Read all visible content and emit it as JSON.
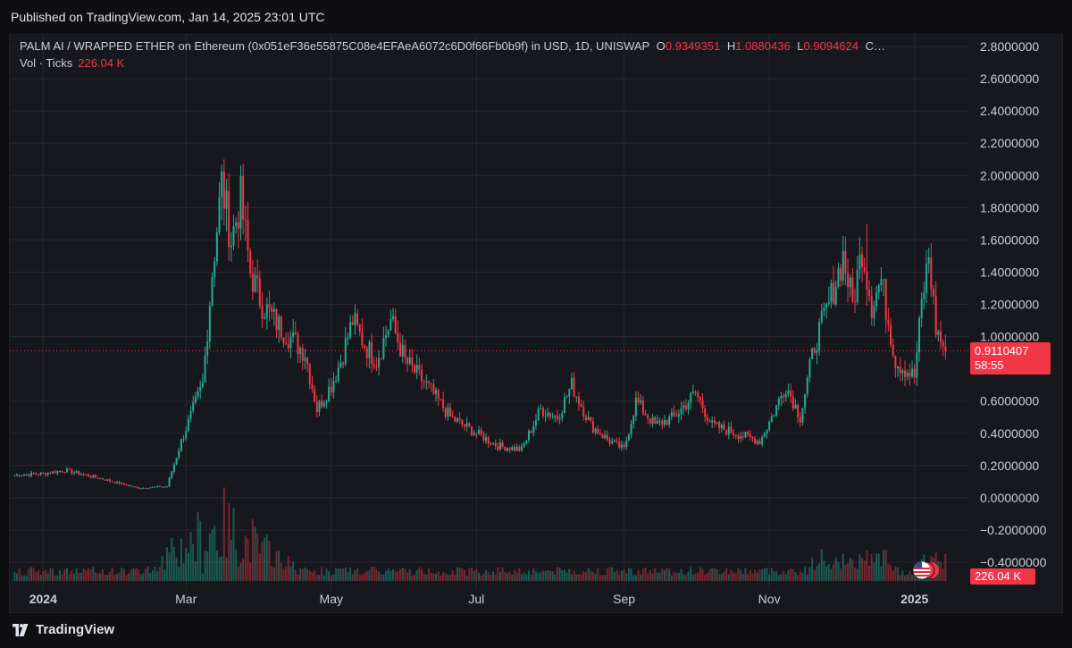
{
  "header": {
    "published": "Published on TradingView.com, Jan 14, 2025 23:01 UTC"
  },
  "legend": {
    "symbol": "PALM AI / WRAPPED ETHER on Ethereum (0x051eF36e55875C08e4EFAeA6072c6D0f66Fb0b9f) in USD, 1D, UNISWAP",
    "open_label": "O",
    "open_value": "0.9349351",
    "high_label": "H",
    "high_value": "1.0880436",
    "low_label": "L",
    "low_value": "0.9094624",
    "close_label": "C…",
    "volume_label": "Vol · Ticks",
    "volume_value": "226.04 K"
  },
  "price_tag": {
    "price": "0.9110407",
    "countdown": "58:55"
  },
  "volume_tag": "226.04 K",
  "footer": {
    "brand": "TradingView"
  },
  "colors": {
    "up": "#22ab94",
    "down": "#f23645",
    "background": "#17181d",
    "grid": "#262830",
    "axis_text": "#c9ccd4"
  },
  "chart_data": {
    "type": "candlestick",
    "title": "",
    "xlabel": "",
    "ylabel": "",
    "y_ticks": [
      "2.8000000",
      "2.6000000",
      "2.4000000",
      "2.2000000",
      "2.0000000",
      "1.8000000",
      "1.6000000",
      "1.4000000",
      "1.2000000",
      "1.0000000",
      "0.6000000",
      "0.4000000",
      "0.2000000",
      "0.0000000",
      "−0.2000000",
      "−0.4000000"
    ],
    "y_tick_values": [
      2.8,
      2.6,
      2.4,
      2.2,
      2.0,
      1.8,
      1.6,
      1.4,
      1.2,
      1.0,
      0.6,
      0.4,
      0.2,
      0.0,
      -0.2,
      -0.4
    ],
    "ylim": [
      -0.5,
      2.95
    ],
    "x_ticks": [
      "2024",
      "Mar",
      "May",
      "Jul",
      "Sep",
      "Nov",
      "2025"
    ],
    "x_tick_dates": [
      "2024-01-01",
      "2024-03-01",
      "2024-05-01",
      "2024-07-01",
      "2024-09-01",
      "2024-11-01",
      "2025-01-01"
    ],
    "x_range": [
      "2023-12-18",
      "2025-01-24"
    ],
    "last_price": 0.9110407,
    "price_path": [
      {
        "date": "2023-12-20",
        "close": 0.14
      },
      {
        "date": "2024-01-01",
        "close": 0.15
      },
      {
        "date": "2024-01-10",
        "close": 0.17
      },
      {
        "date": "2024-01-25",
        "close": 0.12
      },
      {
        "date": "2024-02-10",
        "close": 0.06
      },
      {
        "date": "2024-02-22",
        "close": 0.07
      },
      {
        "date": "2024-02-28",
        "close": 0.35
      },
      {
        "date": "2024-03-04",
        "close": 0.55
      },
      {
        "date": "2024-03-08",
        "close": 0.7
      },
      {
        "date": "2024-03-12",
        "close": 1.4
      },
      {
        "date": "2024-03-16",
        "close": 1.95
      },
      {
        "date": "2024-03-20",
        "close": 1.6
      },
      {
        "date": "2024-03-24",
        "close": 1.85
      },
      {
        "date": "2024-03-28",
        "close": 1.4
      },
      {
        "date": "2024-04-02",
        "close": 1.2
      },
      {
        "date": "2024-04-10",
        "close": 1.05
      },
      {
        "date": "2024-04-20",
        "close": 0.9
      },
      {
        "date": "2024-04-25",
        "close": 0.55
      },
      {
        "date": "2024-05-01",
        "close": 0.7
      },
      {
        "date": "2024-05-05",
        "close": 0.85
      },
      {
        "date": "2024-05-10",
        "close": 1.1
      },
      {
        "date": "2024-05-15",
        "close": 0.95
      },
      {
        "date": "2024-05-20",
        "close": 0.85
      },
      {
        "date": "2024-05-26",
        "close": 1.1
      },
      {
        "date": "2024-06-01",
        "close": 0.85
      },
      {
        "date": "2024-06-10",
        "close": 0.7
      },
      {
        "date": "2024-06-20",
        "close": 0.5
      },
      {
        "date": "2024-07-01",
        "close": 0.4
      },
      {
        "date": "2024-07-10",
        "close": 0.32
      },
      {
        "date": "2024-07-20",
        "close": 0.3
      },
      {
        "date": "2024-07-28",
        "close": 0.55
      },
      {
        "date": "2024-08-04",
        "close": 0.5
      },
      {
        "date": "2024-08-10",
        "close": 0.7
      },
      {
        "date": "2024-08-18",
        "close": 0.45
      },
      {
        "date": "2024-08-26",
        "close": 0.35
      },
      {
        "date": "2024-09-01",
        "close": 0.3
      },
      {
        "date": "2024-09-06",
        "close": 0.6
      },
      {
        "date": "2024-09-14",
        "close": 0.45
      },
      {
        "date": "2024-09-22",
        "close": 0.5
      },
      {
        "date": "2024-10-01",
        "close": 0.65
      },
      {
        "date": "2024-10-08",
        "close": 0.45
      },
      {
        "date": "2024-10-18",
        "close": 0.4
      },
      {
        "date": "2024-10-28",
        "close": 0.35
      },
      {
        "date": "2024-11-02",
        "close": 0.5
      },
      {
        "date": "2024-11-08",
        "close": 0.7
      },
      {
        "date": "2024-11-14",
        "close": 0.5
      },
      {
        "date": "2024-11-20",
        "close": 0.95
      },
      {
        "date": "2024-11-26",
        "close": 1.2
      },
      {
        "date": "2024-12-02",
        "close": 1.5
      },
      {
        "date": "2024-12-06",
        "close": 1.2
      },
      {
        "date": "2024-12-10",
        "close": 1.55
      },
      {
        "date": "2024-12-14",
        "close": 1.2
      },
      {
        "date": "2024-12-18",
        "close": 1.35
      },
      {
        "date": "2024-12-24",
        "close": 0.85
      },
      {
        "date": "2024-12-28",
        "close": 0.8
      },
      {
        "date": "2025-01-01",
        "close": 0.75
      },
      {
        "date": "2025-01-04",
        "close": 1.2
      },
      {
        "date": "2025-01-07",
        "close": 1.5
      },
      {
        "date": "2025-01-10",
        "close": 1.05
      },
      {
        "date": "2025-01-14",
        "close": 0.91
      }
    ],
    "peaks": [
      {
        "date": "2024-03-17",
        "high": 2.1
      },
      {
        "date": "2024-12-12",
        "high": 1.7
      },
      {
        "date": "2025-01-07",
        "high": 1.55
      }
    ],
    "volume_peak_date": "2024-03-16",
    "volume_last": 226.04,
    "volume_unit": "K"
  }
}
